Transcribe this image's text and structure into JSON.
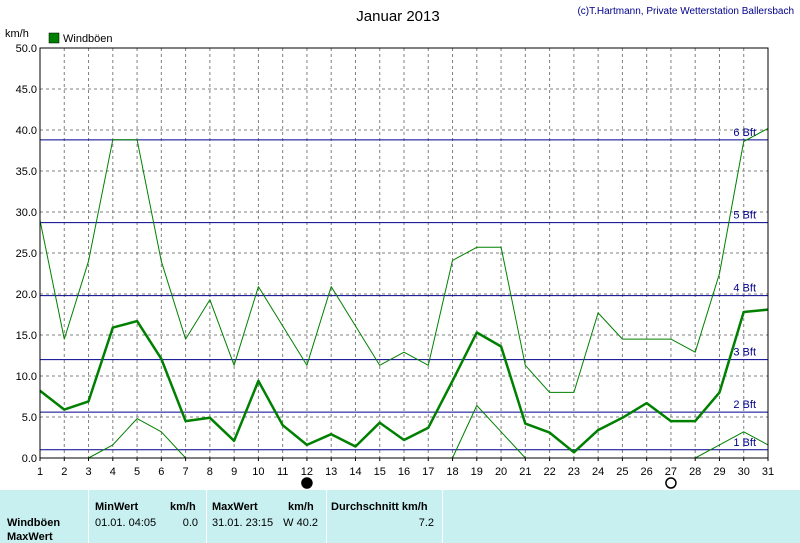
{
  "chart_data": {
    "type": "line",
    "title": "Januar 2013",
    "copyright": "(c)T.Hartmann, Private Wetterstation Ballersbach",
    "ylabel": "km/h",
    "ylim": [
      0,
      50
    ],
    "yticks": [
      "0.0",
      "5.0",
      "10.0",
      "15.0",
      "20.0",
      "25.0",
      "30.0",
      "35.0",
      "40.0",
      "45.0",
      "50.0"
    ],
    "x": [
      1,
      2,
      3,
      4,
      5,
      6,
      7,
      8,
      9,
      10,
      11,
      12,
      13,
      14,
      15,
      16,
      17,
      18,
      19,
      20,
      21,
      22,
      23,
      24,
      25,
      26,
      27,
      28,
      29,
      30,
      31
    ],
    "xlim": [
      1,
      31
    ],
    "legend": "Windböen",
    "grid": true,
    "series": [
      {
        "name": "Windböen",
        "role": "max",
        "color": "#008000",
        "values": [
          29.0,
          14.5,
          24.0,
          38.8,
          38.8,
          24.0,
          14.5,
          19.3,
          11.3,
          20.9,
          16.1,
          11.3,
          20.9,
          16.1,
          11.3,
          12.9,
          11.3,
          24.1,
          25.7,
          25.7,
          11.3,
          8.0,
          8.0,
          17.7,
          14.5,
          14.5,
          14.5,
          12.9,
          22.5,
          38.6,
          40.2
        ]
      },
      {
        "role": "mean",
        "color": "#008000",
        "values": [
          8.2,
          5.9,
          6.9,
          15.9,
          16.7,
          12.1,
          4.5,
          4.9,
          2.1,
          9.4,
          4.0,
          1.6,
          2.9,
          1.4,
          4.3,
          2.2,
          3.7,
          9.4,
          15.3,
          13.6,
          4.2,
          3.1,
          0.7,
          3.4,
          4.9,
          6.7,
          4.5,
          4.5,
          8.0,
          17.8,
          18.1
        ]
      },
      {
        "role": "min",
        "color": "#008000",
        "values": [
          null,
          null,
          0.0,
          1.6,
          4.8,
          3.2,
          0.0,
          null,
          null,
          null,
          null,
          null,
          null,
          null,
          null,
          null,
          null,
          0.0,
          6.4,
          3.2,
          0.0,
          null,
          null,
          null,
          null,
          null,
          null,
          0.0,
          1.6,
          3.2,
          1.6
        ]
      }
    ],
    "reference_lines": [
      {
        "label": "1 Bft",
        "value": 1
      },
      {
        "label": "2 Bft",
        "value": 5.6
      },
      {
        "label": "3 Bft",
        "value": 12
      },
      {
        "label": "4 Bft",
        "value": 19.8
      },
      {
        "label": "5 Bft",
        "value": 28.7
      },
      {
        "label": "6 Bft",
        "value": 38.8
      }
    ],
    "reference_color": "#00008b",
    "moon_markers": [
      {
        "day": 12,
        "phase": "new"
      },
      {
        "day": 27,
        "phase": "full"
      }
    ]
  },
  "stats": {
    "row_label": "Windböen",
    "row_label2": "MaxWert",
    "min_header": "MinWert",
    "min_unit": "km/h",
    "min_datetime": "01.01.  04:05",
    "min_value": "0.0",
    "max_header": "MaxWert",
    "max_unit": "km/h",
    "max_datetime": "31.01.  23:15",
    "max_value": "W 40.2",
    "avg_header": "Durchschnitt km/h",
    "avg_value": "7.2"
  },
  "colors": {
    "panel_bg": "#c8f0f0",
    "line": "#008000",
    "reference": "#00008b",
    "grid": "#808080"
  }
}
